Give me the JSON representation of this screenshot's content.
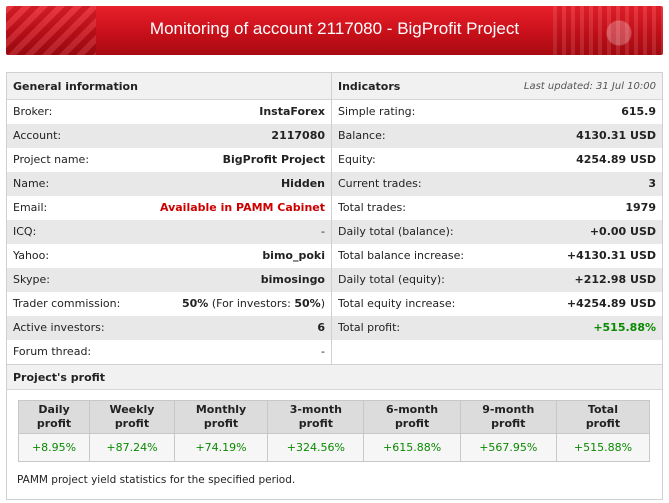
{
  "banner": {
    "title": "Monitoring of account 2117080 - BigProfit Project"
  },
  "general": {
    "heading": "General information",
    "rows": [
      {
        "key": "Broker:",
        "value": "InstaForex"
      },
      {
        "key": "Account:",
        "value": "2117080"
      },
      {
        "key": "Project name:",
        "value": "BigProfit Project"
      },
      {
        "key": "Name:",
        "value": "Hidden"
      },
      {
        "key": "Email:",
        "value": "Available in PAMM Cabinet"
      },
      {
        "key": "ICQ:",
        "value": "-"
      },
      {
        "key": "Yahoo:",
        "value": "bimo_poki"
      },
      {
        "key": "Skype:",
        "value": "bimosingo"
      },
      {
        "key": "Trader commission:",
        "value": "50%",
        "extra": " (For investors: ",
        "extra_bold": "50%",
        "extra_end": ")"
      },
      {
        "key": "Active investors:",
        "value": "6"
      },
      {
        "key": "Forum thread:",
        "value": "-"
      }
    ]
  },
  "indicators": {
    "heading": "Indicators",
    "updated": "Last updated: 31 Jul 10:00",
    "rows": [
      {
        "key": "Simple rating:",
        "value": "615.9"
      },
      {
        "key": "Balance:",
        "value": "4130.31 USD"
      },
      {
        "key": "Equity:",
        "value": "4254.89 USD"
      },
      {
        "key": "Current trades:",
        "value": "3"
      },
      {
        "key": "Total trades:",
        "value": "1979"
      },
      {
        "key": "Daily total (balance):",
        "value": "+0.00 USD"
      },
      {
        "key": "Total balance increase:",
        "value": "+4130.31 USD"
      },
      {
        "key": "Daily total (equity):",
        "value": "+212.98 USD"
      },
      {
        "key": "Total equity increase:",
        "value": "+4254.89 USD"
      },
      {
        "key": "Total profit:",
        "value": "+515.88%"
      }
    ]
  },
  "profit": {
    "heading": "Project's profit",
    "columns": [
      {
        "label1": "Daily",
        "label2": "profit",
        "value": "+8.95%"
      },
      {
        "label1": "Weekly",
        "label2": "profit",
        "value": "+87.24%"
      },
      {
        "label1": "Monthly",
        "label2": "profit",
        "value": "+74.19%"
      },
      {
        "label1": "3-month",
        "label2": "profit",
        "value": "+324.56%"
      },
      {
        "label1": "6-month",
        "label2": "profit",
        "value": "+615.88%"
      },
      {
        "label1": "9-month",
        "label2": "profit",
        "value": "+567.95%"
      },
      {
        "label1": "Total",
        "label2": "profit",
        "value": "+515.88%"
      }
    ],
    "note": "PAMM project yield statistics for the specified period."
  },
  "colors": {
    "banner": "#d0141c",
    "positive": "#0a8a00",
    "link_red": "#cc0000"
  }
}
